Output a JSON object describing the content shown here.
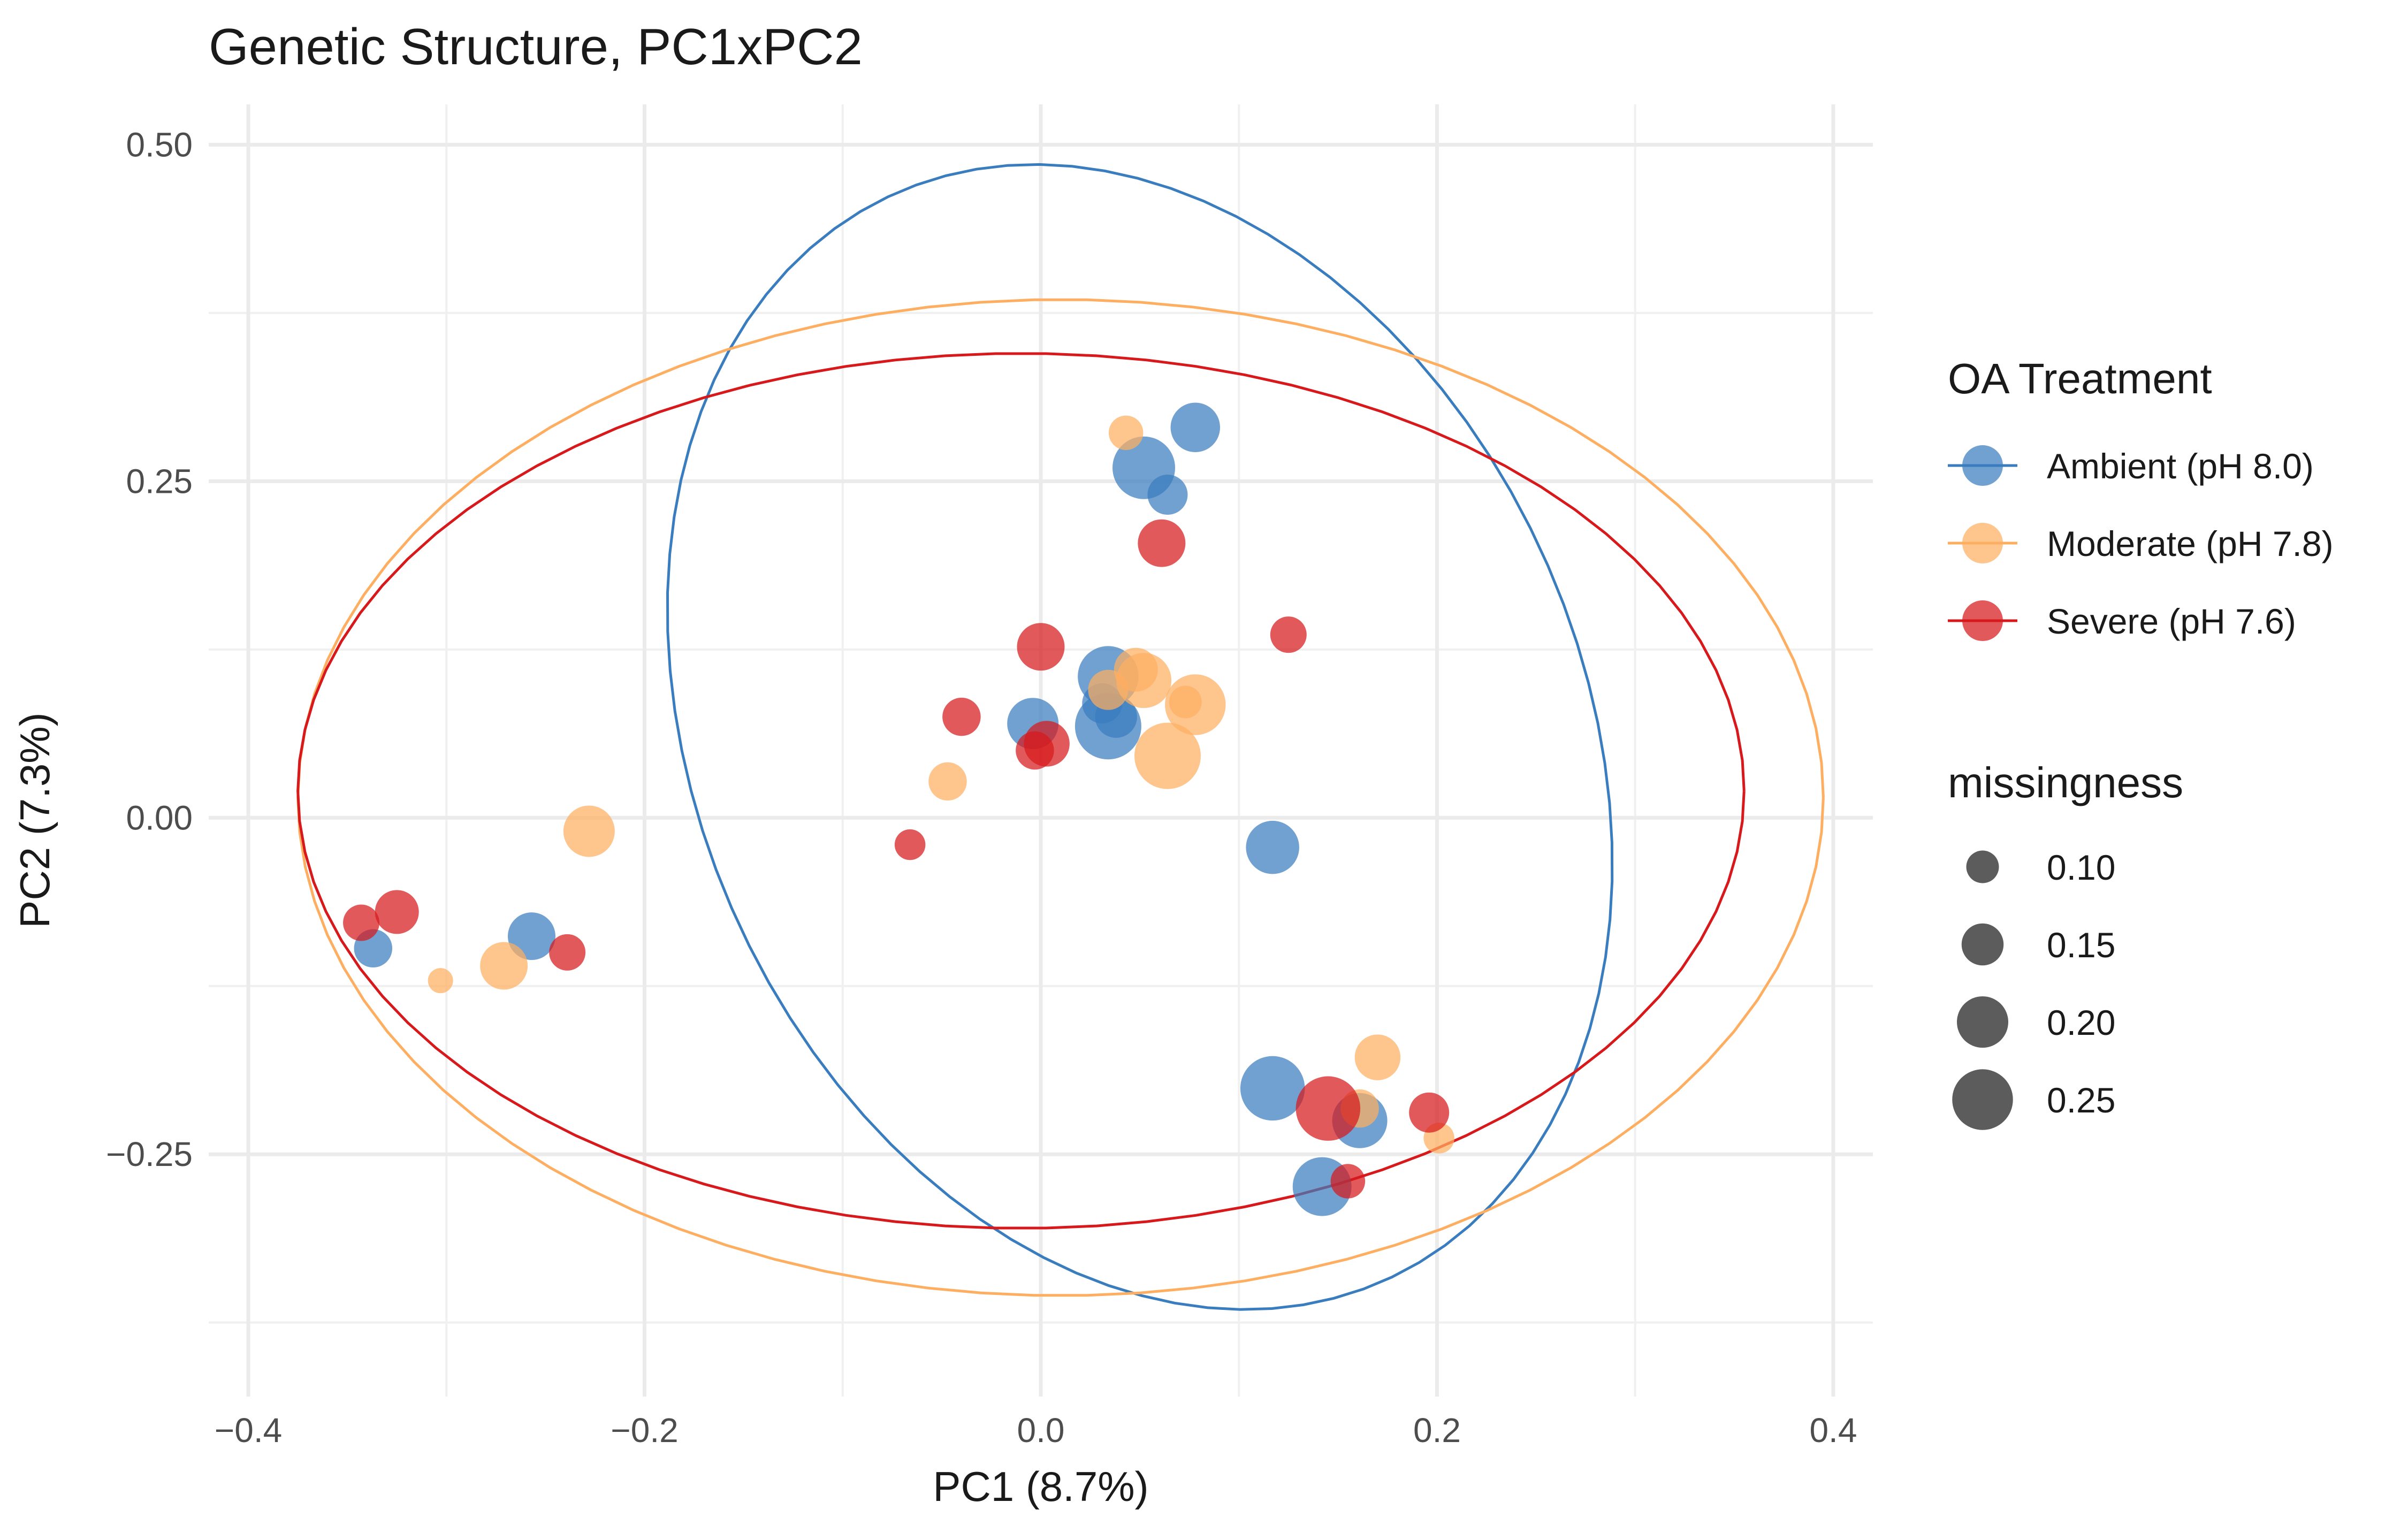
{
  "chart_data": {
    "type": "scatter",
    "title": "Genetic Structure, PC1xPC2",
    "xlabel": "PC1 (8.7%)",
    "ylabel": "PC2 (7.3%)",
    "xlim": [
      -0.42,
      0.42
    ],
    "ylim": [
      -0.43,
      0.53
    ],
    "x_ticks": [
      {
        "value": -0.4,
        "label": "−0.4"
      },
      {
        "value": -0.2,
        "label": "−0.2"
      },
      {
        "value": 0.0,
        "label": "0.0"
      },
      {
        "value": 0.2,
        "label": "0.2"
      },
      {
        "value": 0.4,
        "label": "0.4"
      }
    ],
    "y_ticks": [
      {
        "value": -0.25,
        "label": "−0.25"
      },
      {
        "value": 0.0,
        "label": "0.00"
      },
      {
        "value": 0.25,
        "label": "0.25"
      },
      {
        "value": 0.5,
        "label": "0.50"
      }
    ],
    "grid": true,
    "legend_position": "right",
    "color_legend": {
      "title": "OA Treatment",
      "entries": [
        {
          "key": "ambient",
          "label": "Ambient (pH 8.0)",
          "color": "#3a7dbf"
        },
        {
          "key": "moderate",
          "label": "Moderate (pH 7.8)",
          "color": "#fdae61"
        },
        {
          "key": "severe",
          "label": "Severe (pH 7.6)",
          "color": "#d7191c"
        }
      ]
    },
    "size_legend": {
      "title": "missingness",
      "entries": [
        {
          "value": 0.1,
          "label": "0.10"
        },
        {
          "value": 0.15,
          "label": "0.15"
        },
        {
          "value": 0.2,
          "label": "0.20"
        },
        {
          "value": 0.25,
          "label": "0.25"
        }
      ]
    },
    "ellipses": [
      {
        "series": "ambient",
        "cx": 0.05,
        "cy": 0.06,
        "rx": 0.23,
        "ry": 0.43,
        "angle": 10
      },
      {
        "series": "moderate",
        "cx": 0.01,
        "cy": 0.015,
        "rx": 0.385,
        "ry": 0.37,
        "angle": 0
      },
      {
        "series": "severe",
        "cx": -0.01,
        "cy": 0.02,
        "rx": 0.365,
        "ry": 0.325,
        "angle": 0
      }
    ],
    "series": [
      {
        "key": "ambient",
        "points": [
          {
            "x": 0.078,
            "y": 0.29,
            "m": 0.19
          },
          {
            "x": 0.052,
            "y": 0.26,
            "m": 0.26
          },
          {
            "x": 0.064,
            "y": 0.24,
            "m": 0.14
          },
          {
            "x": 0.034,
            "y": 0.105,
            "m": 0.25
          },
          {
            "x": 0.031,
            "y": 0.085,
            "m": 0.14
          },
          {
            "x": 0.038,
            "y": 0.075,
            "m": 0.15
          },
          {
            "x": -0.004,
            "y": 0.07,
            "m": 0.2
          },
          {
            "x": 0.034,
            "y": 0.068,
            "m": 0.28
          },
          {
            "x": 0.117,
            "y": -0.022,
            "m": 0.21
          },
          {
            "x": -0.257,
            "y": -0.088,
            "m": 0.18
          },
          {
            "x": -0.337,
            "y": -0.097,
            "m": 0.13
          },
          {
            "x": 0.117,
            "y": -0.201,
            "m": 0.27
          },
          {
            "x": 0.161,
            "y": -0.225,
            "m": 0.22
          },
          {
            "x": 0.142,
            "y": -0.274,
            "m": 0.24
          }
        ]
      },
      {
        "key": "moderate",
        "points": [
          {
            "x": 0.043,
            "y": 0.286,
            "m": 0.11
          },
          {
            "x": 0.048,
            "y": 0.11,
            "m": 0.16
          },
          {
            "x": 0.052,
            "y": 0.102,
            "m": 0.22
          },
          {
            "x": 0.034,
            "y": 0.095,
            "m": 0.14
          },
          {
            "x": 0.078,
            "y": 0.084,
            "m": 0.25
          },
          {
            "x": 0.073,
            "y": 0.086,
            "m": 0.1
          },
          {
            "x": 0.064,
            "y": 0.046,
            "m": 0.28
          },
          {
            "x": -0.047,
            "y": 0.027,
            "m": 0.13
          },
          {
            "x": -0.228,
            "y": -0.01,
            "m": 0.2
          },
          {
            "x": -0.271,
            "y": -0.11,
            "m": 0.18
          },
          {
            "x": -0.303,
            "y": -0.121,
            "m": 0.06
          },
          {
            "x": 0.17,
            "y": -0.178,
            "m": 0.17
          },
          {
            "x": 0.161,
            "y": -0.216,
            "m": 0.13
          },
          {
            "x": 0.201,
            "y": -0.238,
            "m": 0.09
          }
        ]
      },
      {
        "key": "severe",
        "points": [
          {
            "x": 0.061,
            "y": 0.204,
            "m": 0.18
          },
          {
            "x": 0.125,
            "y": 0.136,
            "m": 0.12
          },
          {
            "x": 0.0,
            "y": 0.127,
            "m": 0.18
          },
          {
            "x": -0.04,
            "y": 0.075,
            "m": 0.13
          },
          {
            "x": -0.003,
            "y": 0.05,
            "m": 0.13
          },
          {
            "x": 0.003,
            "y": 0.055,
            "m": 0.17
          },
          {
            "x": -0.066,
            "y": -0.02,
            "m": 0.09
          },
          {
            "x": -0.325,
            "y": -0.07,
            "m": 0.16
          },
          {
            "x": -0.343,
            "y": -0.078,
            "m": 0.12
          },
          {
            "x": -0.239,
            "y": -0.1,
            "m": 0.12
          },
          {
            "x": 0.145,
            "y": -0.216,
            "m": 0.27
          },
          {
            "x": 0.196,
            "y": -0.219,
            "m": 0.14
          },
          {
            "x": 0.155,
            "y": -0.27,
            "m": 0.11
          }
        ]
      }
    ]
  }
}
